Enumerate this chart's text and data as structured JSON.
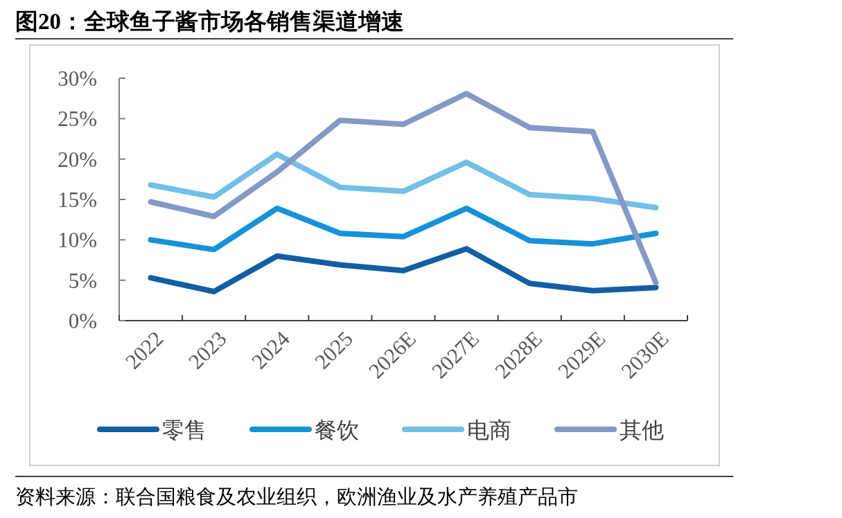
{
  "chart_data": {
    "type": "line",
    "title": "图20：全球鱼子酱市场各销售渠道增速",
    "categories": [
      "2022",
      "2023",
      "2024",
      "2025",
      "2026E",
      "2027E",
      "2028E",
      "2029E",
      "2030E"
    ],
    "ylim": [
      0,
      30
    ],
    "yticks": [
      {
        "value": 0,
        "label": "0%"
      },
      {
        "value": 5,
        "label": "5%"
      },
      {
        "value": 10,
        "label": "10%"
      },
      {
        "value": 15,
        "label": "15%"
      },
      {
        "value": 20,
        "label": "20%"
      },
      {
        "value": 25,
        "label": "25%"
      },
      {
        "value": 30,
        "label": "30%"
      }
    ],
    "grid": false,
    "legend": "bottom",
    "marker": "none",
    "line_style": "solid",
    "series": [
      {
        "name": "零售",
        "color": "#135ea3",
        "values": [
          5.3,
          3.6,
          8.0,
          6.9,
          6.2,
          8.9,
          4.6,
          3.7,
          4.1
        ]
      },
      {
        "name": "餐饮",
        "color": "#1592da",
        "values": [
          10.0,
          8.8,
          13.9,
          10.8,
          10.4,
          13.9,
          9.9,
          9.5,
          10.8
        ]
      },
      {
        "name": "电商",
        "color": "#72bfe8",
        "values": [
          16.8,
          15.3,
          20.6,
          16.5,
          16.0,
          19.6,
          15.6,
          15.1,
          14.0
        ]
      },
      {
        "name": "其他",
        "color": "#8499c6",
        "values": [
          14.7,
          12.9,
          18.4,
          24.8,
          24.3,
          28.1,
          23.9,
          23.4,
          4.7
        ]
      }
    ],
    "annotations": [
      "资料来源：联合国粮食及农业组织，欧洲渔业及水产养殖产品市"
    ]
  }
}
